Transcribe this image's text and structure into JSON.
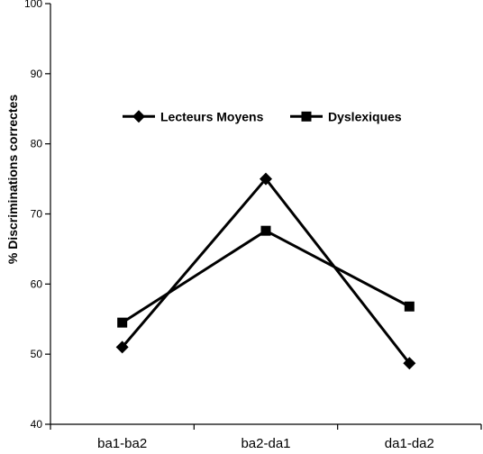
{
  "chart_data": {
    "type": "line",
    "title": "",
    "xlabel": "",
    "ylabel": "% Discriminations correctes",
    "categories": [
      "ba1-ba2",
      "ba2-da1",
      "da1-da2"
    ],
    "ylim": [
      40,
      100
    ],
    "yticks": [
      40,
      50,
      60,
      70,
      80,
      90,
      100
    ],
    "grid": false,
    "legend_position": "top",
    "series": [
      {
        "name": "Lecteurs Moyens",
        "marker": "diamond",
        "color": "#000000",
        "values": [
          51,
          75,
          48.7
        ]
      },
      {
        "name": "Dyslexiques",
        "marker": "square",
        "color": "#000000",
        "values": [
          54.5,
          67.6,
          56.8
        ]
      }
    ]
  }
}
